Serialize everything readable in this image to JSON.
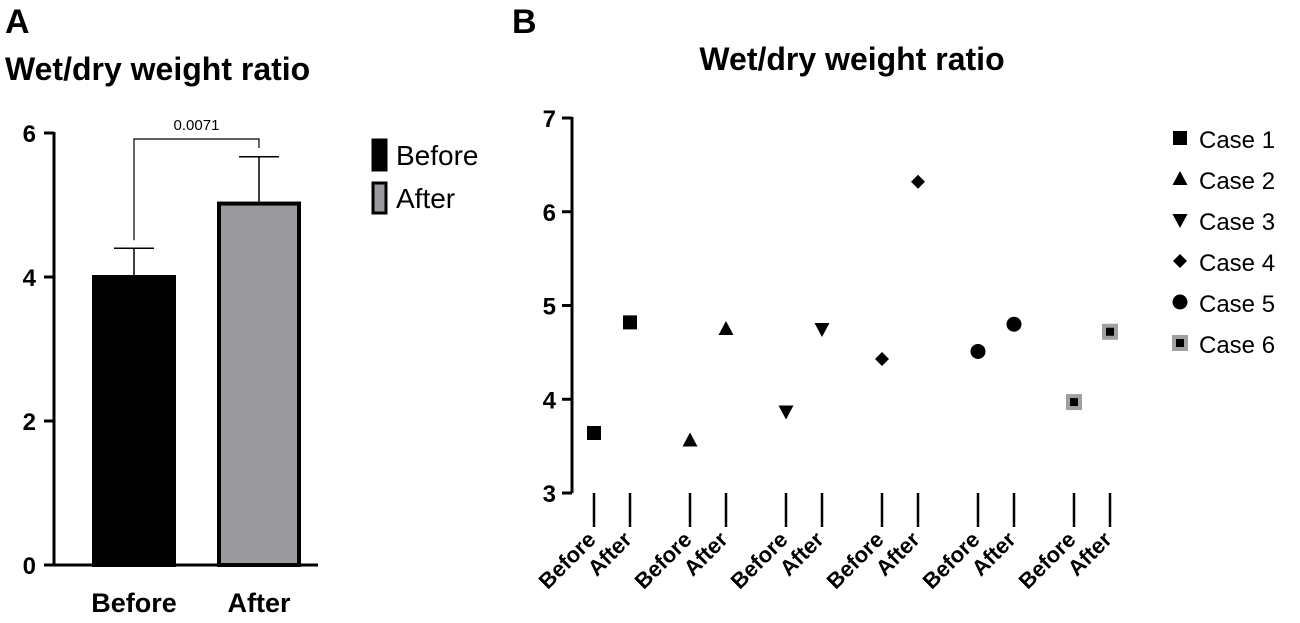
{
  "chart_data": [
    {
      "panel": "A",
      "type": "bar",
      "title": "Wet/dry weight ratio",
      "categories": [
        "Before",
        "After"
      ],
      "values": [
        4.0,
        5.02
      ],
      "error_upper": [
        0.4,
        0.65
      ],
      "colors": [
        "#000000",
        "#9a9a9e"
      ],
      "ylim": [
        0,
        6
      ],
      "yticks": [
        0,
        2,
        4,
        6
      ],
      "xlabel": "",
      "ylabel": "",
      "significance": {
        "label": "0.0071",
        "between": [
          "Before",
          "After"
        ]
      },
      "legend": [
        {
          "label": "Before",
          "color": "#000000"
        },
        {
          "label": "After",
          "color": "#9a9a9e"
        }
      ]
    },
    {
      "panel": "B",
      "type": "scatter",
      "title": "Wet/dry weight ratio",
      "ylim": [
        3,
        7
      ],
      "yticks": [
        3,
        4,
        5,
        6,
        7
      ],
      "x_labels": [
        "Before",
        "After",
        "Before",
        "After",
        "Before",
        "After",
        "Before",
        "After",
        "Before",
        "After",
        "Before",
        "After"
      ],
      "series": [
        {
          "name": "Case 1",
          "marker": "square",
          "values": [
            3.64,
            4.82
          ]
        },
        {
          "name": "Case 2",
          "marker": "triangle-up",
          "values": [
            3.56,
            4.75
          ]
        },
        {
          "name": "Case 3",
          "marker": "triangle-down",
          "values": [
            3.87,
            4.75
          ]
        },
        {
          "name": "Case 4",
          "marker": "diamond",
          "values": [
            4.43,
            6.32
          ]
        },
        {
          "name": "Case 5",
          "marker": "circle",
          "values": [
            4.51,
            4.8
          ]
        },
        {
          "name": "Case 6",
          "marker": "square-gray-border",
          "values": [
            3.97,
            4.72
          ]
        }
      ]
    }
  ]
}
